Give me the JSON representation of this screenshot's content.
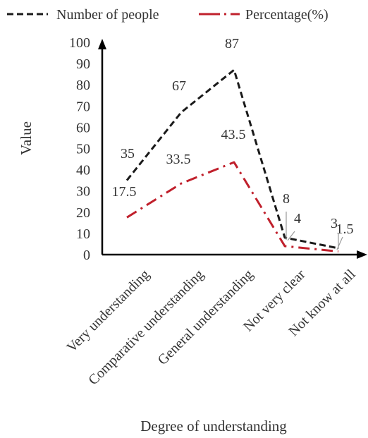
{
  "chart_data": {
    "type": "line",
    "categories": [
      "Very understanding",
      "Comparative understanding",
      "General understanding",
      "Not very clear",
      "Not  know at all"
    ],
    "series": [
      {
        "name": "Number of people",
        "values": [
          35,
          67,
          87,
          8,
          3
        ],
        "labels": [
          "35",
          "67",
          "87",
          "8",
          "3"
        ],
        "color": "#1a1a1a",
        "style": "dashed"
      },
      {
        "name": "Percentage(%)",
        "values": [
          17.5,
          33.5,
          43.5,
          4,
          1.5
        ],
        "labels": [
          "17.5",
          "33.5",
          "43.5",
          "4",
          "1.5"
        ],
        "color": "#c0202c",
        "style": "dash-dot"
      }
    ],
    "xlabel": "Degree of understanding",
    "ylabel": "Value",
    "ylim": [
      0,
      100
    ],
    "yticks": [
      "0",
      "10",
      "20",
      "30",
      "40",
      "50",
      "60",
      "70",
      "80",
      "90",
      "100"
    ],
    "grid": false,
    "legend_position": "top"
  }
}
